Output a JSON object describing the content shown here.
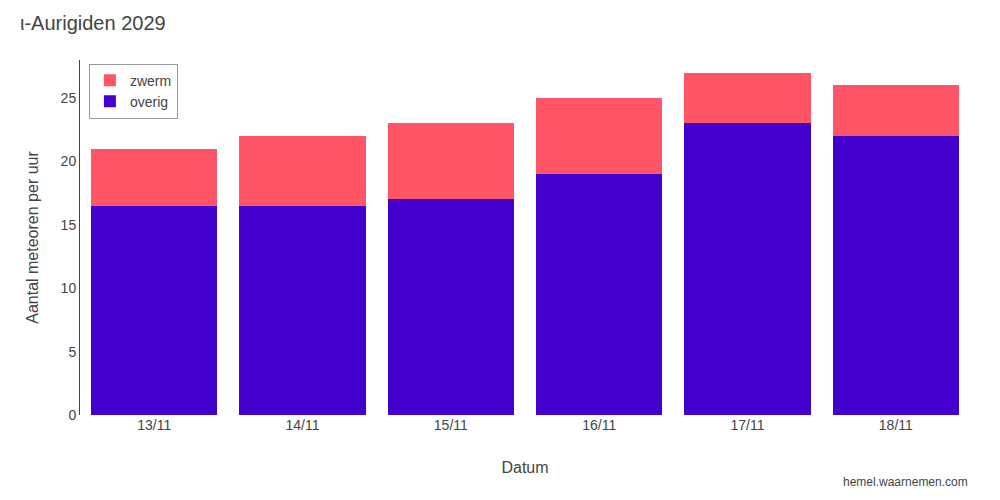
{
  "chart_data": {
    "type": "bar",
    "stacked": true,
    "title": "ι-Aurigiden 2029",
    "xlabel": "Datum",
    "ylabel": "Aantal meteoren per uur",
    "categories": [
      "13/11",
      "14/11",
      "15/11",
      "16/11",
      "17/11",
      "18/11"
    ],
    "series": [
      {
        "name": "overig",
        "color": "#4400cc",
        "values": [
          16.5,
          16.5,
          17.0,
          19.0,
          23.0,
          22.0
        ]
      },
      {
        "name": "zwerm",
        "color": "#ff5566",
        "values": [
          4.5,
          5.5,
          6.0,
          6.0,
          4.0,
          4.0
        ]
      }
    ],
    "ylim": [
      0,
      28
    ],
    "yticks": [
      0,
      5,
      10,
      15,
      20,
      25
    ],
    "grid": false,
    "legend": "upper left",
    "annotations": [
      "hemel.waarnemen.com"
    ]
  }
}
